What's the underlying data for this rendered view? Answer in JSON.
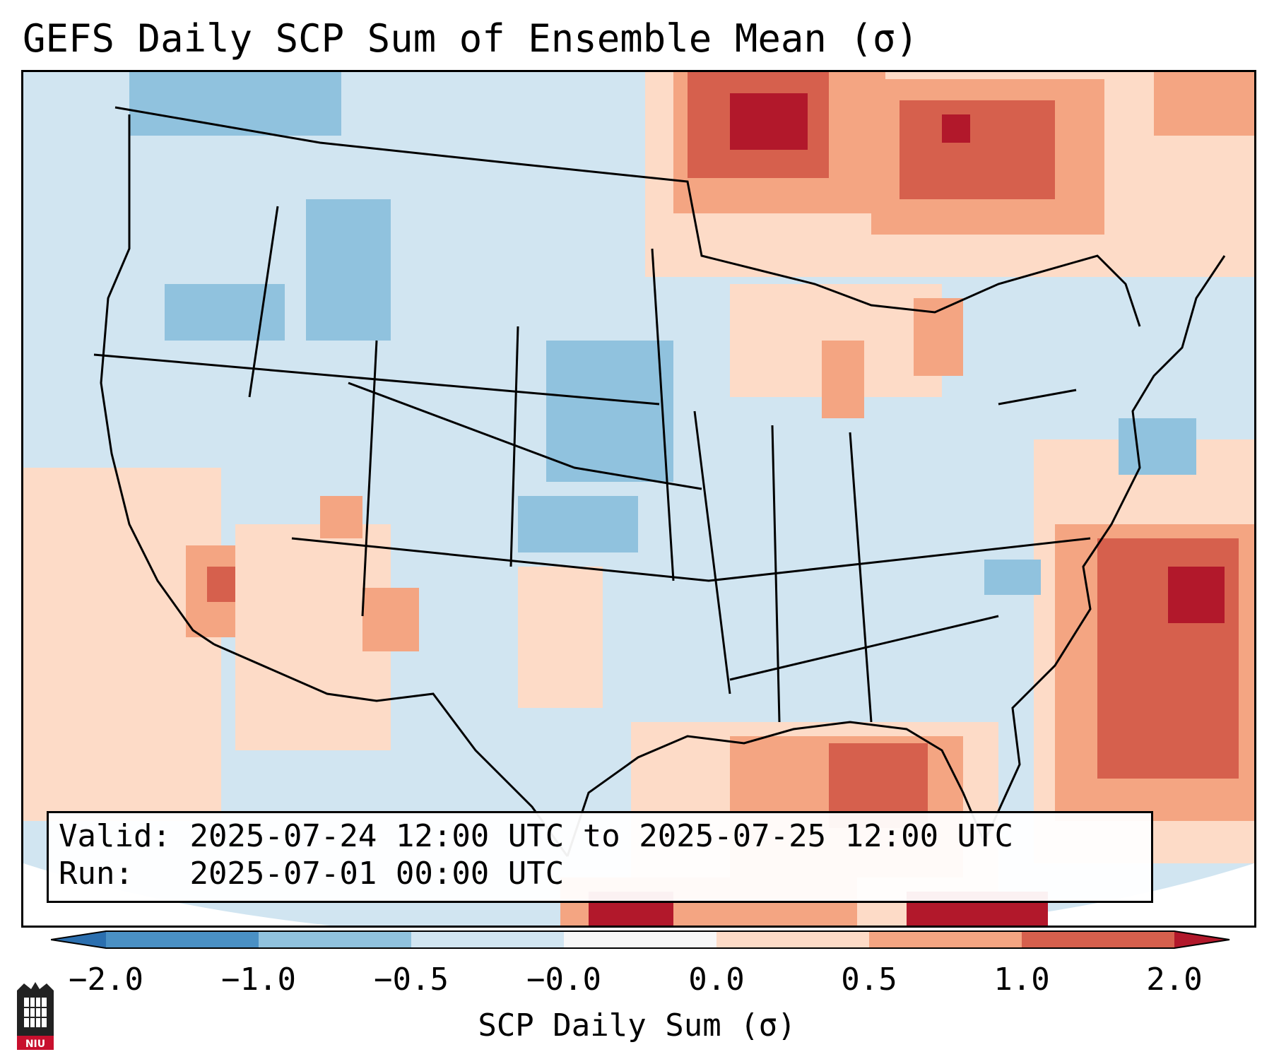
{
  "title": "GEFS Daily SCP Sum of Ensemble Mean (σ)",
  "info": {
    "valid_label": "Valid:",
    "valid_value": "2025-07-24 12:00 UTC to 2025-07-25 12:00 UTC",
    "run_label": "Run:",
    "run_value": "2025-07-01 00:00 UTC"
  },
  "colorbar": {
    "label": "SCP Daily Sum (σ)",
    "ticks": [
      "−2.0",
      "−1.0",
      "−0.5",
      "−0.0",
      "0.0",
      "0.5",
      "1.0",
      "2.0"
    ],
    "bins": [
      {
        "range": "< −2.0",
        "color": "#2b6faf"
      },
      {
        "range": "−2.0 to −1.0",
        "color": "#4a90c4"
      },
      {
        "range": "−1.0 to −0.5",
        "color": "#90c2de"
      },
      {
        "range": "−0.5 to −0.0",
        "color": "#d1e5f1"
      },
      {
        "range": "−0.0 to 0.0",
        "color": "#f7f7f7"
      },
      {
        "range": "0.0 to 0.5",
        "color": "#fddbc7"
      },
      {
        "range": "0.5 to 1.0",
        "color": "#f4a582"
      },
      {
        "range": "1.0 to 2.0",
        "color": "#d6604d"
      },
      {
        "range": "> 2.0",
        "color": "#b2182b"
      }
    ]
  },
  "map": {
    "projection": "Lambert Conformal",
    "region": "CONUS",
    "ocean_color": "#d1e5f1",
    "border_color": "#000000"
  },
  "logo": {
    "text": "NIU",
    "accent": "#c8102e"
  }
}
